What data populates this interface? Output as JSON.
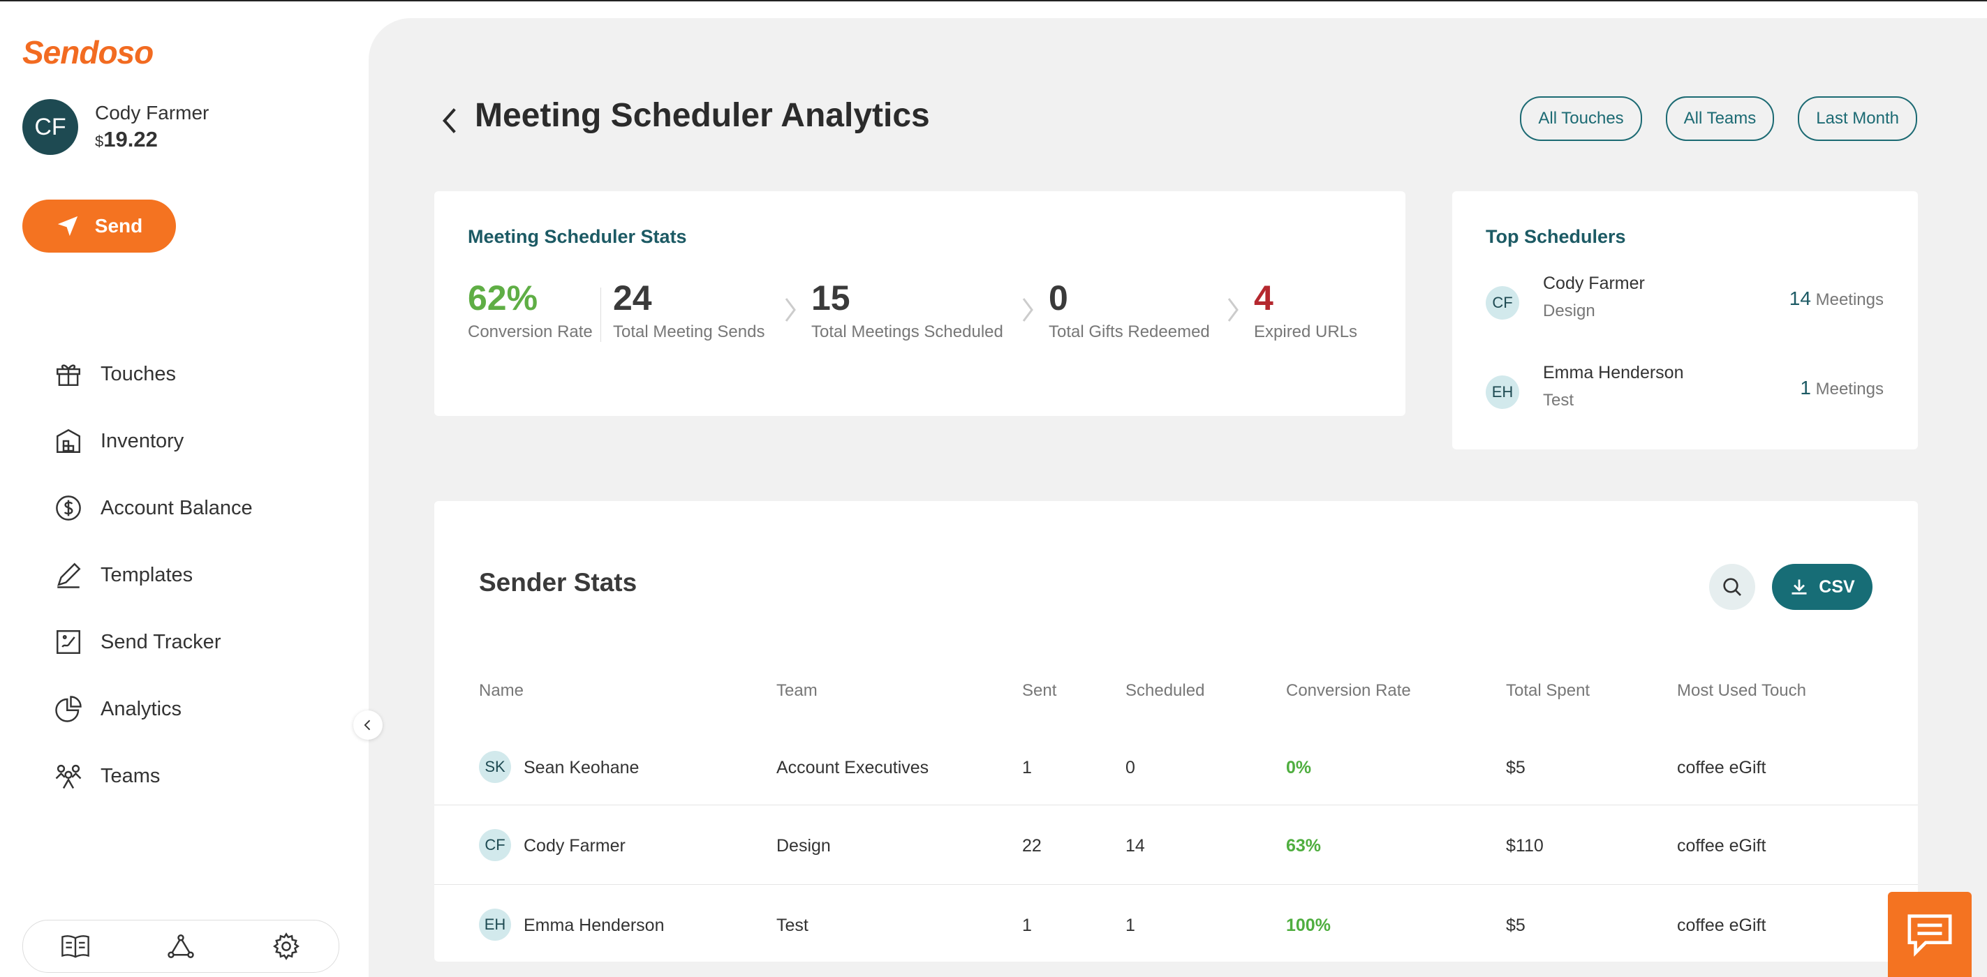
{
  "brand": {
    "logo_text": "Sendoso",
    "accent": "#f47321",
    "teal": "#1c6a73"
  },
  "user": {
    "initials": "CF",
    "name": "Cody Farmer",
    "currency": "$",
    "balance": "19.22"
  },
  "sidebar": {
    "send_label": "Send",
    "items": [
      {
        "label": "Touches",
        "icon": "gift-icon"
      },
      {
        "label": "Inventory",
        "icon": "warehouse-icon"
      },
      {
        "label": "Account Balance",
        "icon": "dollar-icon"
      },
      {
        "label": "Templates",
        "icon": "pen-icon"
      },
      {
        "label": "Send Tracker",
        "icon": "tracker-icon"
      },
      {
        "label": "Analytics",
        "icon": "pie-chart-icon"
      },
      {
        "label": "Teams",
        "icon": "team-icon"
      }
    ],
    "bottom_icons": [
      "book-icon",
      "network-icon",
      "gear-icon"
    ]
  },
  "header": {
    "title": "Meeting Scheduler Analytics",
    "filters": [
      "All Touches",
      "All Teams",
      "Last Month"
    ]
  },
  "stats": {
    "title": "Meeting Scheduler Stats",
    "items": [
      {
        "value": "62%",
        "label": "Conversion Rate",
        "color": "#5fae45"
      },
      {
        "value": "24",
        "label": "Total Meeting Sends",
        "color": "#3a3a3a"
      },
      {
        "value": "15",
        "label": "Total Meetings Scheduled",
        "color": "#3a3a3a"
      },
      {
        "value": "0",
        "label": "Total Gifts Redeemed",
        "color": "#3a3a3a"
      },
      {
        "value": "4",
        "label": "Expired URLs",
        "color": "#b5282f"
      }
    ]
  },
  "top_schedulers": {
    "title": "Top Schedulers",
    "meetings_word": "Meetings",
    "rows": [
      {
        "initials": "CF",
        "name": "Cody Farmer",
        "team": "Design",
        "count": "14"
      },
      {
        "initials": "EH",
        "name": "Emma Henderson",
        "team": "Test",
        "count": "1"
      }
    ]
  },
  "sender_stats": {
    "title": "Sender Stats",
    "csv_label": "CSV",
    "columns": [
      "Name",
      "Team",
      "Sent",
      "Scheduled",
      "Conversion Rate",
      "Total Spent",
      "Most Used Touch"
    ],
    "rows": [
      {
        "initials": "SK",
        "name": "Sean Keohane",
        "team": "Account Executives",
        "sent": "1",
        "scheduled": "0",
        "conversion": "0%",
        "spent": "$5",
        "touch": "coffee eGift"
      },
      {
        "initials": "CF",
        "name": "Cody Farmer",
        "team": "Design",
        "sent": "22",
        "scheduled": "14",
        "conversion": "63%",
        "spent": "$110",
        "touch": "coffee eGift"
      },
      {
        "initials": "EH",
        "name": "Emma Henderson",
        "team": "Test",
        "sent": "1",
        "scheduled": "1",
        "conversion": "100%",
        "spent": "$5",
        "touch": "coffee eGift"
      }
    ]
  }
}
